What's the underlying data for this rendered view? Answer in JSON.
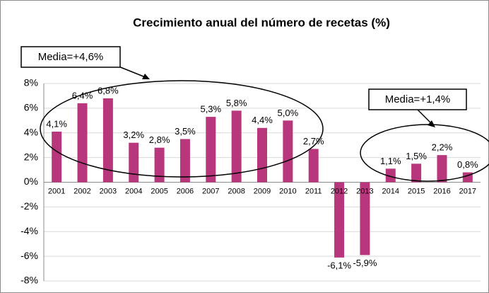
{
  "chart_data": {
    "type": "bar",
    "title": "Crecimiento anual del número de recetas (%)",
    "categories": [
      "2001",
      "2002",
      "2003",
      "2004",
      "2005",
      "2006",
      "2007",
      "2008",
      "2009",
      "2010",
      "2011",
      "2012",
      "2013",
      "2014",
      "2015",
      "2016",
      "2017"
    ],
    "values": [
      4.1,
      6.4,
      6.8,
      3.2,
      2.8,
      3.5,
      5.3,
      5.8,
      4.4,
      5.0,
      2.7,
      -6.1,
      -5.9,
      1.1,
      1.5,
      2.2,
      0.8
    ],
    "value_labels": [
      "4,1%",
      "6,4%",
      "6,8%",
      "3,2%",
      "2,8%",
      "3,5%",
      "5,3%",
      "5,8%",
      "4,4%",
      "5,0%",
      "2,7%",
      "-6,1%",
      "-5,9%",
      "1,1%",
      "1,5%",
      "2,2%",
      "0,8%"
    ],
    "color": "#b8377c",
    "ylim": [
      -8,
      8
    ],
    "yticks": [
      {
        "value": -8,
        "label": "-8%"
      },
      {
        "value": -6,
        "label": "-6%"
      },
      {
        "value": -4,
        "label": "-4%"
      },
      {
        "value": -2,
        "label": "-2%"
      },
      {
        "value": 0,
        "label": "0%"
      },
      {
        "value": 2,
        "label": "2%"
      },
      {
        "value": 4,
        "label": "4%"
      },
      {
        "value": 6,
        "label": "6%"
      },
      {
        "value": 8,
        "label": "8%"
      }
    ],
    "grid": true,
    "annotations": [
      "Media=+4,6%",
      "Media=+1,4%"
    ]
  }
}
